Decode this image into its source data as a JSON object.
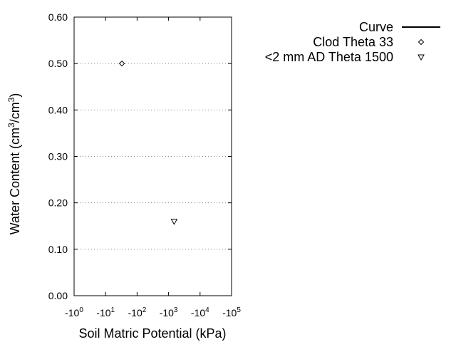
{
  "chart_data": {
    "type": "scatter",
    "xlabel": "Soil Matric Potential (kPa)",
    "ylabel_parts": [
      "Water Content (cm",
      "3",
      "/cm",
      "3",
      ")"
    ],
    "x_scale": "log",
    "x_ticks": [
      {
        "base": "-10",
        "exp": "0",
        "value": 1
      },
      {
        "base": "-10",
        "exp": "1",
        "value": 10
      },
      {
        "base": "-10",
        "exp": "2",
        "value": 100
      },
      {
        "base": "-10",
        "exp": "3",
        "value": 1000
      },
      {
        "base": "-10",
        "exp": "4",
        "value": 10000
      },
      {
        "base": "-10",
        "exp": "5",
        "value": 100000
      }
    ],
    "xlim": [
      1,
      100000
    ],
    "ylim": [
      0,
      0.6
    ],
    "y_ticks": [
      "0.00",
      "0.10",
      "0.20",
      "0.30",
      "0.40",
      "0.50",
      "0.60"
    ],
    "grid": "horizontal dotted",
    "legend_position": "right",
    "legend": [
      {
        "label": "Curve",
        "symbol": "line"
      },
      {
        "label": "Clod Theta 33",
        "symbol": "diamond"
      },
      {
        "label": "<2 mm AD Theta 1500",
        "symbol": "triangle-down"
      }
    ],
    "series": [
      {
        "name": "Curve",
        "points": []
      },
      {
        "name": "Clod Theta 33",
        "symbol": "diamond",
        "points": [
          {
            "x": 33,
            "y": 0.5
          }
        ]
      },
      {
        "name": "<2 mm AD Theta 1500",
        "symbol": "triangle-down",
        "points": [
          {
            "x": 1500,
            "y": 0.16
          }
        ]
      }
    ]
  }
}
